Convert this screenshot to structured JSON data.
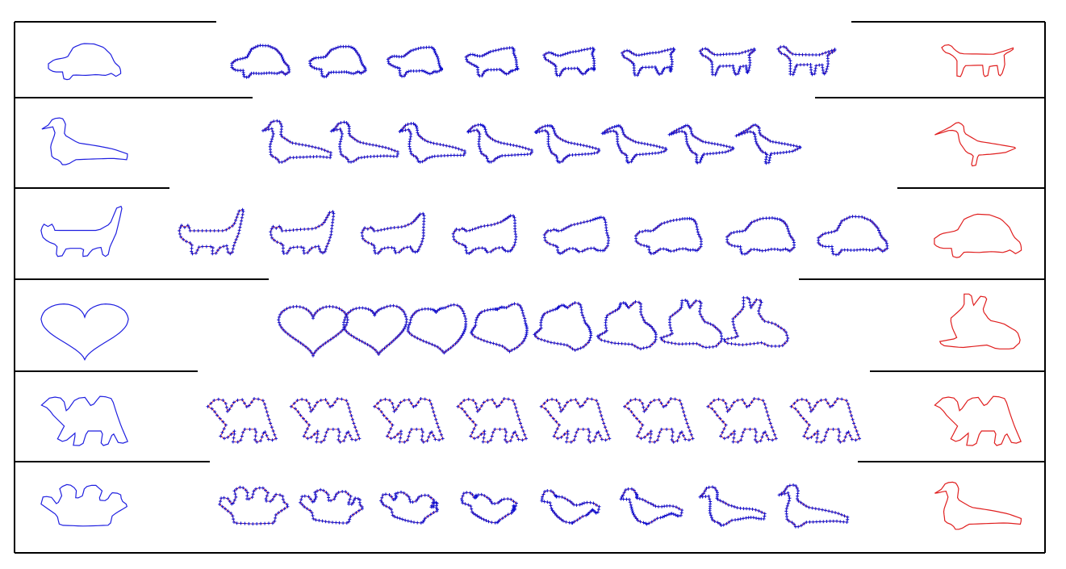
{
  "figure": {
    "kind": "shape-morphing sequences",
    "source_color": "#1f1fe0",
    "target_color": "#e01f1f",
    "point_color": "#1010d0",
    "link_color": "#d02020",
    "frames_per_row": 8
  },
  "rows": [
    {
      "source": "turtle-silhouette",
      "target": "dog-silhouette"
    },
    {
      "source": "pigeon-silhouette",
      "target": "sandpiper-silhouette"
    },
    {
      "source": "cat-silhouette",
      "target": "turtle-silhouette"
    },
    {
      "source": "heart-silhouette",
      "target": "rabbit-silhouette"
    },
    {
      "source": "camel-silhouette",
      "target": "camel-silhouette"
    },
    {
      "source": "crown-silhouette",
      "target": "pigeon-silhouette"
    }
  ]
}
